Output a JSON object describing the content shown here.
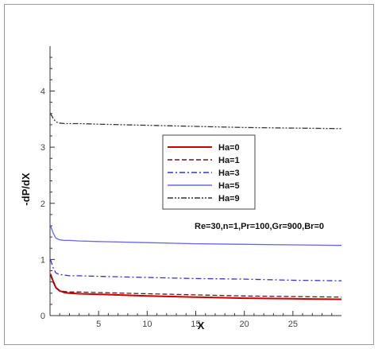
{
  "chart_data": {
    "type": "line",
    "title": "",
    "xlabel": "X",
    "ylabel": "-dP/dX",
    "xlim": [
      0,
      30
    ],
    "ylim": [
      0,
      4.8
    ],
    "xticks": [
      5,
      10,
      15,
      20,
      25
    ],
    "yticks": [
      0,
      1,
      2,
      3,
      4
    ],
    "grid": false,
    "legend_position": "center",
    "annotation": "Re=30,n=1,Pr=100,Gr=900,Br=0",
    "series": [
      {
        "name": "Ha=0",
        "color": "#cc0000",
        "dash": "solid",
        "x": [
          0.05,
          0.3,
          0.6,
          1.0,
          1.5,
          2,
          3,
          5,
          10,
          15,
          20,
          25,
          30
        ],
        "y": [
          0.74,
          0.62,
          0.5,
          0.44,
          0.41,
          0.4,
          0.39,
          0.38,
          0.35,
          0.33,
          0.31,
          0.3,
          0.29
        ]
      },
      {
        "name": "Ha=1",
        "color": "#5a1f1f",
        "dash": "dashed",
        "x": [
          0.05,
          0.3,
          0.6,
          1.0,
          1.5,
          2,
          3,
          5,
          10,
          15,
          20,
          25,
          30
        ],
        "y": [
          0.72,
          0.6,
          0.49,
          0.44,
          0.43,
          0.42,
          0.42,
          0.41,
          0.39,
          0.37,
          0.35,
          0.34,
          0.33
        ]
      },
      {
        "name": "Ha=3",
        "color": "#3333cc",
        "dash": "dashdot",
        "x": [
          0.05,
          0.3,
          0.6,
          1.0,
          1.5,
          2,
          3,
          5,
          10,
          15,
          20,
          25,
          30
        ],
        "y": [
          1.0,
          0.86,
          0.76,
          0.73,
          0.72,
          0.71,
          0.71,
          0.7,
          0.68,
          0.66,
          0.65,
          0.63,
          0.62
        ]
      },
      {
        "name": "Ha=5",
        "color": "#6666ee",
        "dash": "solid",
        "x": [
          0.05,
          0.3,
          0.6,
          1.0,
          1.5,
          2,
          3,
          5,
          10,
          15,
          20,
          25,
          30
        ],
        "y": [
          1.6,
          1.48,
          1.38,
          1.35,
          1.34,
          1.34,
          1.33,
          1.32,
          1.3,
          1.28,
          1.27,
          1.26,
          1.25
        ]
      },
      {
        "name": "Ha=9",
        "color": "#333333",
        "dash": "dashdotdot",
        "x": [
          0.05,
          0.3,
          0.6,
          1.0,
          1.5,
          2,
          3,
          5,
          10,
          15,
          20,
          25,
          30
        ],
        "y": [
          3.6,
          3.52,
          3.45,
          3.43,
          3.42,
          3.42,
          3.42,
          3.41,
          3.39,
          3.37,
          3.35,
          3.34,
          3.33
        ]
      }
    ]
  }
}
